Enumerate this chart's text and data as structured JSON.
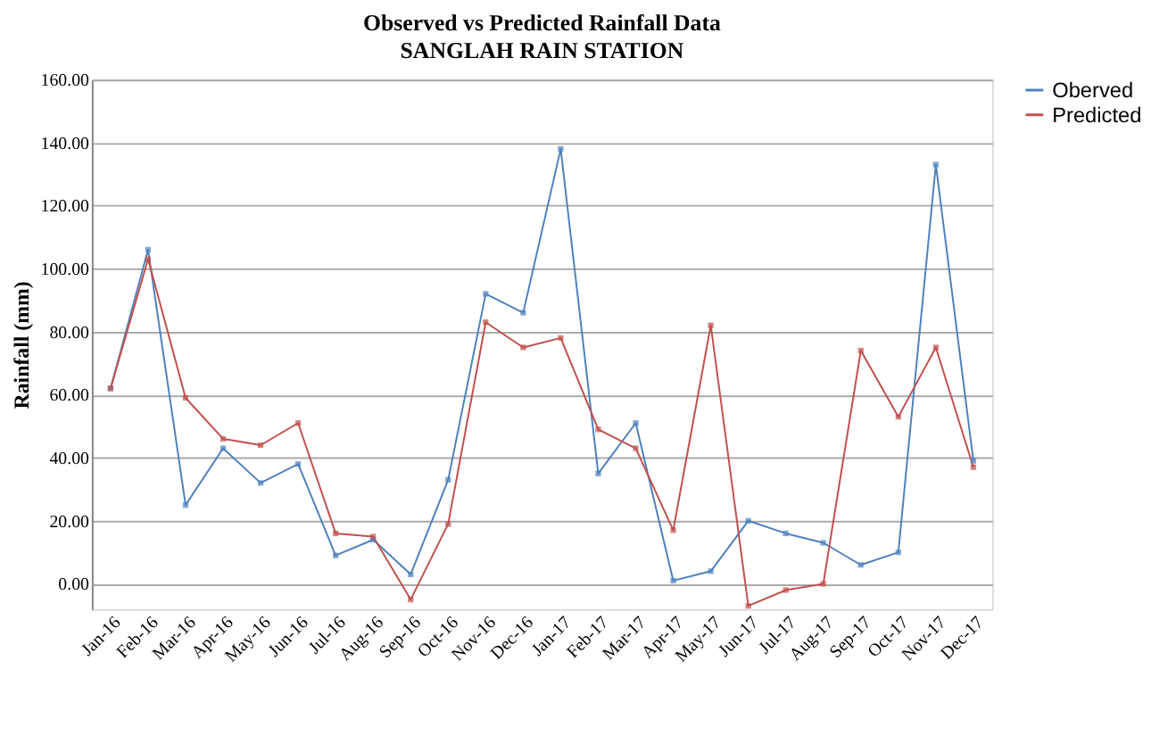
{
  "chart_data": {
    "type": "line",
    "title": "Observed vs Predicted  Rainfall Data",
    "subtitle": "SANGLAH RAIN STATION",
    "ylabel": "Rainfall (mm)",
    "categories": [
      "Jan-16",
      "Feb-16",
      "Mar-16",
      "Apr-16",
      "May-16",
      "Jun-16",
      "Jul-16",
      "Aug-16",
      "Sep-16",
      "Oct-16",
      "Nov-16",
      "Dec-16",
      "Jan-17",
      "Feb-17",
      "Mar-17",
      "Apr-17",
      "May-17",
      "Jun-17",
      "Jul-17",
      "Aug-17",
      "Sep-17",
      "Oct-17",
      "Nov-17",
      "Dec-17"
    ],
    "series": [
      {
        "name": "Oberved",
        "color": "#4f81bd",
        "values": [
          62,
          106,
          25,
          43,
          32,
          38,
          9,
          14,
          3,
          33,
          92,
          86,
          138,
          35,
          51,
          1,
          4,
          20,
          16,
          13,
          6,
          10,
          133,
          39
        ]
      },
      {
        "name": "Predicted",
        "color": "#c0504d",
        "values": [
          62,
          103,
          59,
          46,
          44,
          51,
          16,
          15,
          -5,
          19,
          83,
          75,
          78,
          49,
          43,
          17,
          82,
          -7,
          -2,
          0,
          74,
          53,
          75,
          37
        ]
      }
    ],
    "ylim": [
      -8,
      160
    ],
    "yticks": [
      {
        "value": 0,
        "label": "0.00"
      },
      {
        "value": 20,
        "label": "20.00"
      },
      {
        "value": 40,
        "label": "40.00"
      },
      {
        "value": 60,
        "label": "60.00"
      },
      {
        "value": 80,
        "label": "80.00"
      },
      {
        "value": 100,
        "label": "100.00"
      },
      {
        "value": 120,
        "label": "120.00"
      },
      {
        "value": 140,
        "label": "140.00"
      },
      {
        "value": 160,
        "label": "160.00"
      }
    ],
    "grid": "y",
    "legend": "right",
    "marker": "square",
    "line_style": "solid"
  }
}
